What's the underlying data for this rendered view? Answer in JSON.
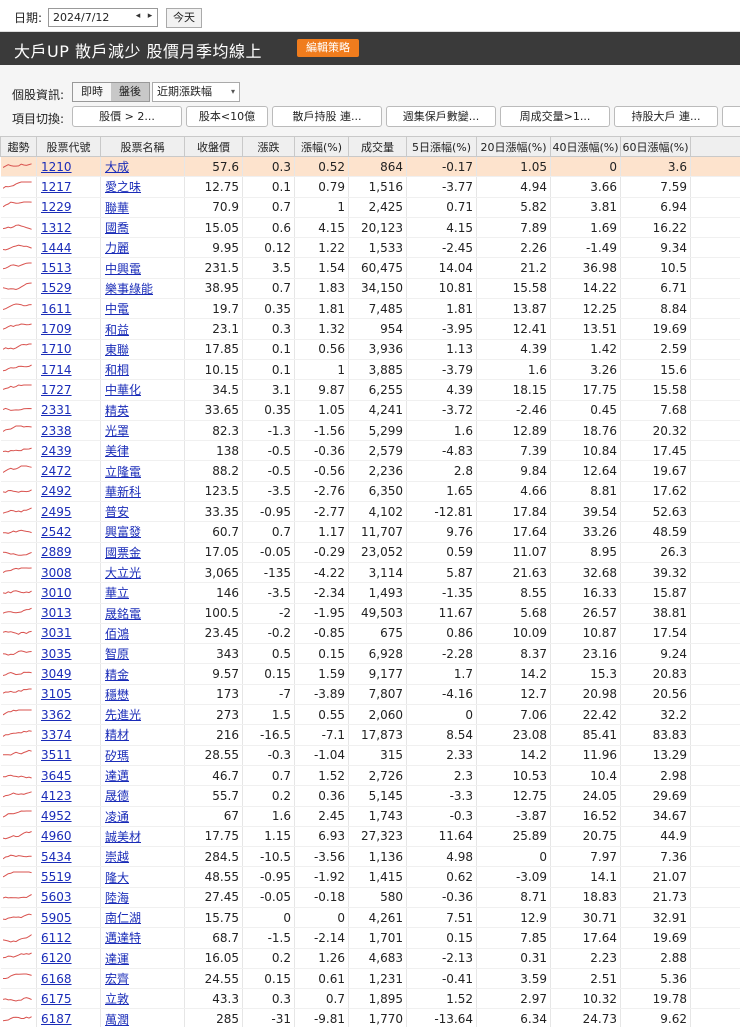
{
  "date_bar": {
    "label": "日期:",
    "date": "2024/7/12",
    "prev": "◂",
    "next": "▸",
    "today": "今天"
  },
  "title_bar": {
    "title": "大戶UP 散戶減少  股價月季均線上",
    "edit": "編輯策略"
  },
  "info_bar": {
    "label": "個股資訊:",
    "realtime": "即時",
    "after_hours": "盤後",
    "period_select": "近期漲跌幅",
    "period_arrow": "▾",
    "switch_label": "項目切換:",
    "switches": [
      "股價 > 2...",
      "股本<10億",
      "散戶持股 連...",
      "週集保戶數變...",
      "周成交量>1...",
      "持股大戶 連..."
    ]
  },
  "colors": {
    "title_bg": "#3a3a3a",
    "edit_btn": "#f07c1d",
    "highlight": "#fde3cd",
    "link": "#1a2cb8",
    "spark": "#d9534f"
  },
  "table": {
    "headers": [
      "趨勢",
      "股票代號",
      "股票名稱",
      "收盤價",
      "漲跌",
      "漲幅(%)",
      "成交量",
      "5日漲幅(%)",
      "20日漲幅(%)",
      "40日漲幅(%)",
      "60日漲幅(%)"
    ],
    "rows": [
      [
        "1210",
        "大成",
        "57.6",
        "0.3",
        "0.52",
        "864",
        "-0.17",
        "1.05",
        "0",
        "3.6"
      ],
      [
        "1217",
        "愛之味",
        "12.75",
        "0.1",
        "0.79",
        "1,516",
        "-3.77",
        "4.94",
        "3.66",
        "7.59"
      ],
      [
        "1229",
        "聯華",
        "70.9",
        "0.7",
        "1",
        "2,425",
        "0.71",
        "5.82",
        "3.81",
        "6.94"
      ],
      [
        "1312",
        "國喬",
        "15.05",
        "0.6",
        "4.15",
        "20,123",
        "4.15",
        "7.89",
        "1.69",
        "16.22"
      ],
      [
        "1444",
        "力麗",
        "9.95",
        "0.12",
        "1.22",
        "1,533",
        "-2.45",
        "2.26",
        "-1.49",
        "9.34"
      ],
      [
        "1513",
        "中興電",
        "231.5",
        "3.5",
        "1.54",
        "60,475",
        "14.04",
        "21.2",
        "36.98",
        "10.5"
      ],
      [
        "1529",
        "樂事綠能",
        "38.95",
        "0.7",
        "1.83",
        "34,150",
        "10.81",
        "15.58",
        "14.22",
        "6.71"
      ],
      [
        "1611",
        "中電",
        "19.7",
        "0.35",
        "1.81",
        "7,485",
        "1.81",
        "13.87",
        "12.25",
        "8.84"
      ],
      [
        "1709",
        "和益",
        "23.1",
        "0.3",
        "1.32",
        "954",
        "-3.95",
        "12.41",
        "13.51",
        "19.69"
      ],
      [
        "1710",
        "東聯",
        "17.85",
        "0.1",
        "0.56",
        "3,936",
        "1.13",
        "4.39",
        "1.42",
        "2.59"
      ],
      [
        "1714",
        "和桐",
        "10.15",
        "0.1",
        "1",
        "3,885",
        "-3.79",
        "1.6",
        "3.26",
        "15.6"
      ],
      [
        "1727",
        "中華化",
        "34.5",
        "3.1",
        "9.87",
        "6,255",
        "4.39",
        "18.15",
        "17.75",
        "15.58"
      ],
      [
        "2331",
        "精英",
        "33.65",
        "0.35",
        "1.05",
        "4,241",
        "-3.72",
        "-2.46",
        "0.45",
        "7.68"
      ],
      [
        "2338",
        "光罩",
        "82.3",
        "-1.3",
        "-1.56",
        "5,299",
        "1.6",
        "12.89",
        "18.76",
        "20.32"
      ],
      [
        "2439",
        "美律",
        "138",
        "-0.5",
        "-0.36",
        "2,579",
        "-4.83",
        "7.39",
        "10.84",
        "17.45"
      ],
      [
        "2472",
        "立隆電",
        "88.2",
        "-0.5",
        "-0.56",
        "2,236",
        "2.8",
        "9.84",
        "12.64",
        "19.67"
      ],
      [
        "2492",
        "華新科",
        "123.5",
        "-3.5",
        "-2.76",
        "6,350",
        "1.65",
        "4.66",
        "8.81",
        "17.62"
      ],
      [
        "2495",
        "普安",
        "33.35",
        "-0.95",
        "-2.77",
        "4,102",
        "-12.81",
        "17.84",
        "39.54",
        "52.63"
      ],
      [
        "2542",
        "興富發",
        "60.7",
        "0.7",
        "1.17",
        "11,707",
        "9.76",
        "17.64",
        "33.26",
        "48.59"
      ],
      [
        "2889",
        "國票金",
        "17.05",
        "-0.05",
        "-0.29",
        "23,052",
        "0.59",
        "11.07",
        "8.95",
        "26.3"
      ],
      [
        "3008",
        "大立光",
        "3,065",
        "-135",
        "-4.22",
        "3,114",
        "5.87",
        "21.63",
        "32.68",
        "39.32"
      ],
      [
        "3010",
        "華立",
        "146",
        "-3.5",
        "-2.34",
        "1,493",
        "-1.35",
        "8.55",
        "16.33",
        "15.87"
      ],
      [
        "3013",
        "晟銘電",
        "100.5",
        "-2",
        "-1.95",
        "49,503",
        "11.67",
        "5.68",
        "26.57",
        "38.81"
      ],
      [
        "3031",
        "佰鴻",
        "23.45",
        "-0.2",
        "-0.85",
        "675",
        "0.86",
        "10.09",
        "10.87",
        "17.54"
      ],
      [
        "3035",
        "智原",
        "343",
        "0.5",
        "0.15",
        "6,928",
        "-2.28",
        "8.37",
        "23.16",
        "9.24"
      ],
      [
        "3049",
        "精金",
        "9.57",
        "0.15",
        "1.59",
        "9,177",
        "1.7",
        "14.2",
        "15.3",
        "20.83"
      ],
      [
        "3105",
        "穩懋",
        "173",
        "-7",
        "-3.89",
        "7,807",
        "-4.16",
        "12.7",
        "20.98",
        "20.56"
      ],
      [
        "3362",
        "先進光",
        "273",
        "1.5",
        "0.55",
        "2,060",
        "0",
        "7.06",
        "22.42",
        "32.2"
      ],
      [
        "3374",
        "精材",
        "216",
        "-16.5",
        "-7.1",
        "17,873",
        "8.54",
        "23.08",
        "85.41",
        "83.83"
      ],
      [
        "3511",
        "矽瑪",
        "28.55",
        "-0.3",
        "-1.04",
        "315",
        "2.33",
        "14.2",
        "11.96",
        "13.29"
      ],
      [
        "3645",
        "達邁",
        "46.7",
        "0.7",
        "1.52",
        "2,726",
        "2.3",
        "10.53",
        "10.4",
        "2.98"
      ],
      [
        "4123",
        "晟德",
        "55.7",
        "0.2",
        "0.36",
        "5,145",
        "-3.3",
        "12.75",
        "24.05",
        "29.69"
      ],
      [
        "4952",
        "凌通",
        "67",
        "1.6",
        "2.45",
        "1,743",
        "-0.3",
        "-3.87",
        "16.52",
        "34.67"
      ],
      [
        "4960",
        "誠美材",
        "17.75",
        "1.15",
        "6.93",
        "27,323",
        "11.64",
        "25.89",
        "20.75",
        "44.9"
      ],
      [
        "5434",
        "崇越",
        "284.5",
        "-10.5",
        "-3.56",
        "1,136",
        "4.98",
        "0",
        "7.97",
        "7.36"
      ],
      [
        "5519",
        "隆大",
        "48.55",
        "-0.95",
        "-1.92",
        "1,415",
        "0.62",
        "-3.09",
        "14.1",
        "21.07"
      ],
      [
        "5603",
        "陸海",
        "27.45",
        "-0.05",
        "-0.18",
        "580",
        "-0.36",
        "8.71",
        "18.83",
        "21.73"
      ],
      [
        "5905",
        "南仁湖",
        "15.75",
        "0",
        "0",
        "4,261",
        "7.51",
        "12.9",
        "30.71",
        "32.91"
      ],
      [
        "6112",
        "邁達特",
        "68.7",
        "-1.5",
        "-2.14",
        "1,701",
        "0.15",
        "7.85",
        "17.64",
        "19.69"
      ],
      [
        "6120",
        "達運",
        "16.05",
        "0.2",
        "1.26",
        "4,683",
        "-2.13",
        "0.31",
        "2.23",
        "2.88"
      ],
      [
        "6168",
        "宏齊",
        "24.55",
        "0.15",
        "0.61",
        "1,231",
        "-0.41",
        "3.59",
        "2.51",
        "5.36"
      ],
      [
        "6175",
        "立敦",
        "43.3",
        "0.3",
        "0.7",
        "1,895",
        "1.52",
        "2.97",
        "10.32",
        "19.78"
      ],
      [
        "6187",
        "萬潤",
        "285",
        "-31",
        "-9.81",
        "1,770",
        "-13.64",
        "6.34",
        "24.73",
        "9.62"
      ]
    ]
  }
}
